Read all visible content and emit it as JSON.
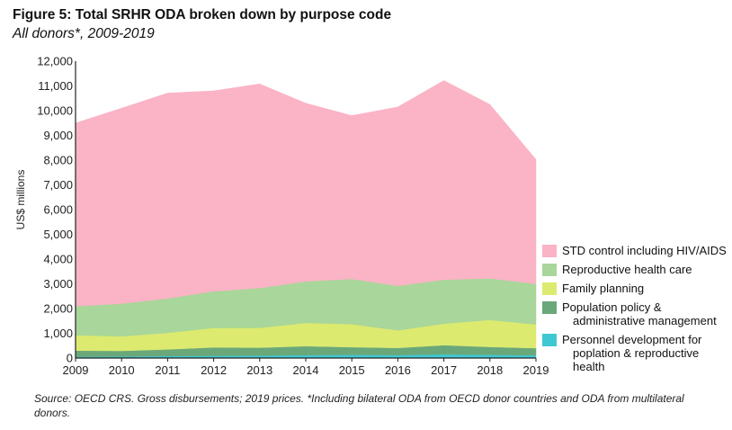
{
  "title": "Figure 5: Total SRHR ODA broken down by purpose code",
  "subtitle": "All donors*, 2009-2019",
  "source": "Source: OECD CRS. Gross disbursements; 2019 prices. *Including bilateral ODA from OECD donor countries and ODA from multilateral donors.",
  "chart_data": {
    "type": "area",
    "stacked": true,
    "ylabel": "US$ millions",
    "xlabel": "",
    "ylim": [
      0,
      12000
    ],
    "yticks": [
      "0",
      "1,000",
      "2,000",
      "3,000",
      "4,000",
      "5,000",
      "6,000",
      "7,000",
      "8,000",
      "9,000",
      "10,000",
      "11,000",
      "12,000"
    ],
    "x": [
      "2009",
      "2010",
      "2011",
      "2012",
      "2013",
      "2014",
      "2015",
      "2016",
      "2017",
      "2018",
      "2019"
    ],
    "legend_position": "right",
    "series": [
      {
        "name": "Personnel development for poplation & reproductive health",
        "label_lines": [
          "Personnel development for",
          "poplation & reproductive health"
        ],
        "color": "#3fc8d4",
        "values": [
          50,
          60,
          80,
          90,
          100,
          120,
          130,
          120,
          150,
          130,
          110
        ]
      },
      {
        "name": "Population policy & administrative management",
        "label_lines": [
          "Population policy &",
          "administrative management"
        ],
        "color": "#6aa87a",
        "values": [
          250,
          230,
          270,
          340,
          320,
          360,
          310,
          290,
          370,
          320,
          290
        ]
      },
      {
        "name": "Family planning",
        "label_lines": [
          "Family planning"
        ],
        "color": "#dcea70",
        "values": [
          620,
          590,
          670,
          790,
          800,
          940,
          930,
          710,
          870,
          1090,
          960
        ]
      },
      {
        "name": "Reproductive health care",
        "label_lines": [
          "Reproductive health care"
        ],
        "color": "#a9d69a",
        "values": [
          1180,
          1320,
          1390,
          1480,
          1610,
          1680,
          1830,
          1800,
          1780,
          1680,
          1640
        ]
      },
      {
        "name": "STD control including HIV/AIDS",
        "label_lines": [
          "STD control including HIV/AIDS"
        ],
        "color": "#fbb3c6",
        "values": [
          7400,
          7900,
          8300,
          8100,
          8250,
          7200,
          6600,
          7230,
          8050,
          7030,
          5030
        ]
      }
    ]
  }
}
